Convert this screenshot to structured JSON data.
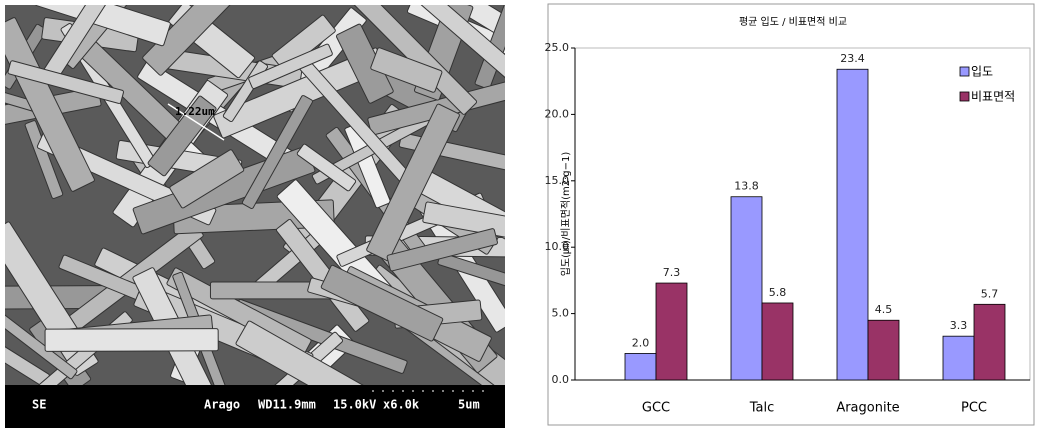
{
  "micrograph": {
    "measurement": "1.22um",
    "detector": "SE",
    "sample": "Arago",
    "working_distance": "WD11.9mm",
    "voltage": "15.0kV",
    "magnification": "x6.0k",
    "scale": "5um"
  },
  "chart_data": {
    "type": "bar",
    "title": "평균 입도 / 비표면적 비교",
    "y_label": "입도(㎛)/비표면적(m2·g−1)",
    "categories": [
      "GCC",
      "Talc",
      "Aragonite",
      "PCC"
    ],
    "series": [
      {
        "name": "입도",
        "color": "#9999ff",
        "values": [
          2,
          13.8,
          23.4,
          3.3
        ],
        "value_labels": [
          "2.0",
          "13.8",
          "23.4",
          "3.3"
        ]
      },
      {
        "name": "비표면적",
        "color": "#993366",
        "values": [
          7.3,
          5.8,
          4.5,
          5.7
        ],
        "value_labels": [
          "7.3",
          "5.8",
          "4.5",
          "5.7"
        ]
      }
    ],
    "ylim": [
      0,
      25
    ],
    "yticks": [
      {
        "value": 0,
        "label": "0.0"
      },
      {
        "value": 5,
        "label": "5.0"
      },
      {
        "value": 10,
        "label": "10.0"
      },
      {
        "value": 15,
        "label": "15.0"
      },
      {
        "value": 20,
        "label": "20.0"
      },
      {
        "value": 25,
        "label": "25.0"
      }
    ],
    "legend": "top-right",
    "grid": false
  }
}
